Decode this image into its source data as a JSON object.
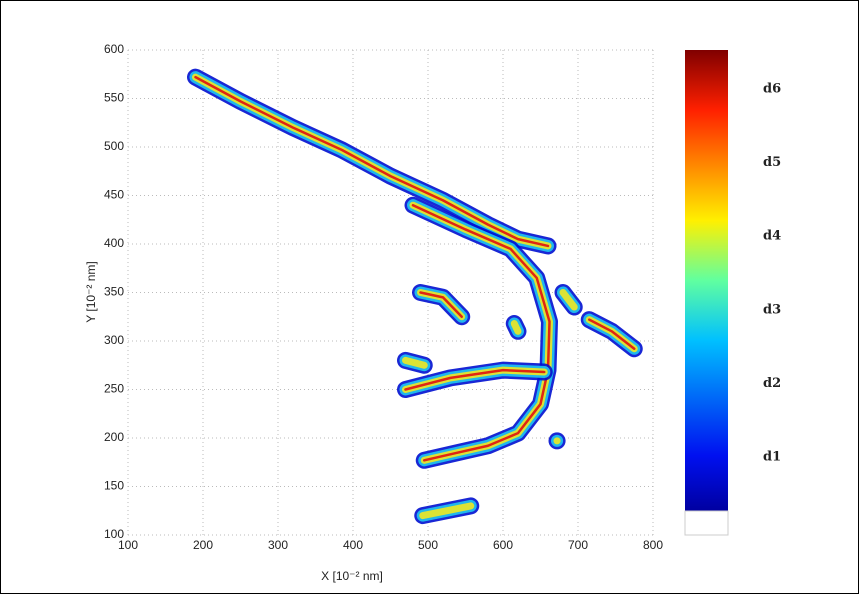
{
  "chart_data": {
    "type": "track",
    "xlabel": "X  [10⁻² nm]",
    "ylabel": "Y  [10⁻² nm]",
    "xlim": [
      100,
      800
    ],
    "xticks": [
      100,
      200,
      300,
      400,
      500,
      600,
      700,
      800
    ],
    "ylim": [
      100,
      600
    ],
    "yticks": [
      100,
      150,
      200,
      250,
      300,
      350,
      400,
      450,
      500,
      550,
      600
    ],
    "grid": true,
    "colormap": [
      "#0010d0",
      "#20c8f0",
      "#f0e820",
      "#e01010"
    ],
    "colorbar_labels": [
      "d1",
      "d2",
      "d3",
      "d4",
      "d5",
      "d6"
    ],
    "series": [
      {
        "x": [
          190,
          250,
          320,
          385,
          450,
          520,
          580,
          620,
          660
        ],
        "y": [
          572,
          547,
          520,
          497,
          470,
          445,
          420,
          405,
          398
        ]
      },
      {
        "x": [
          480,
          550,
          610,
          645,
          662,
          660,
          650,
          620,
          580,
          540,
          495
        ],
        "y": [
          440,
          415,
          395,
          365,
          320,
          270,
          235,
          205,
          192,
          185,
          177
        ]
      },
      {
        "x": [
          470,
          530,
          600,
          655
        ],
        "y": [
          250,
          262,
          270,
          268
        ]
      },
      {
        "x": [
          490,
          520,
          545
        ],
        "y": [
          350,
          345,
          325
        ]
      },
      {
        "x": [
          615,
          620
        ],
        "y": [
          318,
          310
        ]
      },
      {
        "x": [
          715,
          745,
          775
        ],
        "y": [
          322,
          310,
          292
        ]
      },
      {
        "x": [
          680,
          695
        ],
        "y": [
          350,
          335
        ]
      },
      {
        "x": [
          470,
          495
        ],
        "y": [
          280,
          275
        ]
      },
      {
        "x": [
          557,
          493
        ],
        "y": [
          130,
          120
        ]
      },
      {
        "x": [
          672
        ],
        "y": [
          197
        ]
      }
    ]
  }
}
